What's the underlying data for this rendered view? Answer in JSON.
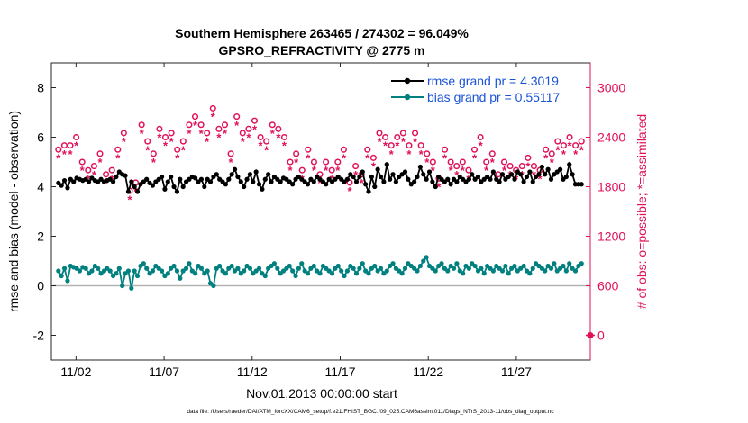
{
  "chart_data": {
    "type": "line",
    "title_line1": "Southern Hemisphere 263465 / 274302 = 96.049%",
    "title_line2": "GPSRO_REFRACTIVITY @ 2775 m",
    "xlabel": "Nov.01,2013 00:00:00 start",
    "ylabel_left": "rmse and bias (model - observation)",
    "ylabel_right": "# of obs: o=possible; *=assimilated",
    "footer": "data file: /Users/raeder/DAI/ATM_forcXX/CAM6_setup/f.e21.FHIST_BGC.f09_025.CAM6assim.011/Diags_NTrS_2013-11/obs_diag_output.nc",
    "xlim": [
      0.6,
      31.2
    ],
    "ylim_left": [
      -3,
      9
    ],
    "ylim_right": [
      -300,
      3300
    ],
    "x_ticks": [
      {
        "value": 2,
        "label": "11/02"
      },
      {
        "value": 7,
        "label": "11/07"
      },
      {
        "value": 12,
        "label": "11/12"
      },
      {
        "value": 17,
        "label": "11/17"
      },
      {
        "value": 22,
        "label": "11/22"
      },
      {
        "value": 27,
        "label": "11/27"
      }
    ],
    "y_ticks_left": [
      -2,
      0,
      2,
      4,
      6,
      8
    ],
    "y_ticks_right": [
      0,
      600,
      1200,
      1800,
      2400,
      3000
    ],
    "legend_position": "top-right",
    "series": [
      {
        "name": "rmse grand pr = 4.3019",
        "color": "#000000",
        "axis": "left",
        "marker": "circle",
        "values": [
          4.15,
          4.05,
          4.25,
          3.95,
          4.3,
          4.2,
          4.35,
          4.3,
          4.25,
          4.3,
          4.2,
          4.35,
          4.25,
          4.2,
          4.3,
          4.2,
          4.25,
          4.3,
          4.2,
          4.4,
          4.6,
          4.5,
          4.45,
          3.8,
          4.2,
          4.0,
          3.8,
          4.1,
          4.2,
          4.3,
          4.15,
          4.05,
          4.2,
          4.3,
          4.4,
          3.9,
          4.2,
          4.4,
          4.0,
          3.8,
          4.3,
          4.0,
          4.2,
          4.3,
          4.4,
          4.35,
          4.2,
          4.3,
          4.0,
          4.3,
          4.2,
          4.4,
          4.5,
          4.3,
          4.2,
          4.1,
          4.3,
          4.5,
          4.7,
          4.4,
          4.2,
          4.0,
          4.3,
          4.5,
          4.2,
          4.6,
          4.1,
          3.9,
          4.3,
          4.5,
          4.2,
          4.4,
          4.3,
          4.2,
          4.35,
          4.3,
          4.2,
          4.1,
          4.3,
          4.4,
          4.3,
          4.2,
          4.1,
          4.3,
          4.2,
          4.4,
          4.3,
          4.2,
          4.1,
          4.3,
          4.2,
          4.3,
          4.4,
          4.3,
          4.2,
          4.3,
          4.5,
          4.4,
          4.2,
          4.4,
          4.6,
          4.1,
          3.8,
          4.4,
          4.0,
          4.7,
          4.4,
          4.2,
          4.9,
          4.3,
          4.5,
          4.2,
          4.4,
          4.5,
          4.6,
          4.3,
          4.1,
          4.2,
          4.4,
          4.8,
          4.5,
          4.3,
          4.6,
          4.2,
          4.0,
          4.4,
          4.3,
          4.2,
          4.3,
          4.1,
          4.3,
          4.2,
          4.4,
          4.3,
          4.2,
          4.3,
          4.5,
          4.3,
          4.4,
          4.2,
          4.3,
          4.4,
          4.3,
          4.6,
          4.3,
          4.2,
          4.5,
          4.3,
          4.4,
          4.5,
          4.3,
          4.6,
          4.5,
          4.2,
          4.4,
          4.6,
          4.2,
          4.4,
          4.5,
          4.8,
          4.5,
          4.7,
          4.3,
          4.5,
          4.6,
          4.7,
          4.3,
          4.4,
          4.9,
          4.5,
          4.1,
          4.1,
          4.1
        ]
      },
      {
        "name": "bias grand pr = 0.55117",
        "color": "#00807f",
        "axis": "left",
        "marker": "circle",
        "values": [
          0.6,
          0.4,
          0.7,
          0.2,
          0.8,
          0.75,
          0.7,
          0.6,
          0.75,
          0.7,
          0.5,
          0.6,
          0.8,
          0.7,
          0.5,
          0.6,
          0.7,
          0.6,
          0.4,
          0.5,
          0.7,
          0.0,
          0.5,
          0.6,
          -0.1,
          0.6,
          0.4,
          0.8,
          0.9,
          0.7,
          0.5,
          0.6,
          0.8,
          0.7,
          0.6,
          0.4,
          0.5,
          0.7,
          0.8,
          0.6,
          0.3,
          0.6,
          0.7,
          0.9,
          0.6,
          0.5,
          0.8,
          0.7,
          0.5,
          0.6,
          0.1,
          0.0,
          0.7,
          0.8,
          0.6,
          0.5,
          0.7,
          0.8,
          0.6,
          0.7,
          0.5,
          0.6,
          0.8,
          0.7,
          0.5,
          0.6,
          0.7,
          0.5,
          0.4,
          0.7,
          0.8,
          0.9,
          0.7,
          0.5,
          0.6,
          0.7,
          0.8,
          0.6,
          0.4,
          0.7,
          0.9,
          0.6,
          0.5,
          0.7,
          0.8,
          0.6,
          0.5,
          0.8,
          0.7,
          0.6,
          0.5,
          0.7,
          0.8,
          0.6,
          0.4,
          0.6,
          0.8,
          0.7,
          0.5,
          0.7,
          0.9,
          0.6,
          0.5,
          0.7,
          0.8,
          0.6,
          0.7,
          0.5,
          0.6,
          0.8,
          0.9,
          0.7,
          0.6,
          0.5,
          0.7,
          0.9,
          0.8,
          0.7,
          0.6,
          0.8,
          1.0,
          1.15,
          0.8,
          0.7,
          0.6,
          0.8,
          0.9,
          0.7,
          0.6,
          0.8,
          0.7,
          0.9,
          0.6,
          0.5,
          0.8,
          0.7,
          0.9,
          0.8,
          0.6,
          0.7,
          0.5,
          0.8,
          0.7,
          0.6,
          0.8,
          0.7,
          0.6,
          0.8,
          0.5,
          0.7,
          0.8,
          0.6,
          0.7,
          0.8,
          0.6,
          0.5,
          0.7,
          0.9,
          0.8,
          0.7,
          0.6,
          0.8,
          0.7,
          0.9,
          0.6,
          0.7,
          0.8,
          0.6,
          0.9,
          0.7,
          0.6,
          0.8,
          0.9
        ]
      },
      {
        "name": "obs possible",
        "color": "#e0105a",
        "axis": "right",
        "marker": "open-circle",
        "values": [
          2250,
          2200,
          2300,
          2150,
          2300,
          2600,
          2400,
          2250,
          2100,
          1950,
          2000,
          2150,
          2050,
          2500,
          2200,
          2000,
          1950,
          1900,
          2000,
          2100,
          2250,
          2600,
          2450,
          2100,
          1750,
          1900,
          1850,
          2400,
          2550,
          2450,
          2350,
          2400,
          2200,
          2300,
          2500,
          2550,
          2400,
          2100,
          2450,
          2300,
          2250,
          2300,
          2350,
          2200,
          2550,
          2750,
          2650,
          2700,
          2550,
          2400,
          2450,
          2600,
          2750,
          2700,
          2500,
          2650,
          2550,
          2350,
          2200,
          2600,
          2650,
          2500,
          2450,
          2300,
          2500,
          2450,
          2600,
          2650,
          2400,
          2450,
          2350,
          2500,
          2550,
          2450,
          2500,
          2300,
          2400,
          2250,
          2100,
          2050,
          2200,
          2150,
          2000,
          2150,
          2250,
          2300,
          2100,
          1850,
          1950,
          2050,
          2100,
          1950,
          2000,
          2050,
          2100,
          2200,
          2250,
          2100,
          1850,
          1950,
          2050,
          2000,
          1950,
          2100,
          2250,
          2300,
          2150,
          2350,
          2450,
          2550,
          2400,
          2350,
          2300,
          2250,
          2400,
          2550,
          2450,
          2400,
          2300,
          2500,
          2450,
          2350,
          2300,
          2150,
          2200,
          2050,
          2100,
          2000,
          1900,
          2100,
          2250,
          2150,
          2100,
          1950,
          2050,
          2000,
          2100,
          1850,
          2000,
          2150,
          2250,
          2300,
          2400,
          2250,
          2100,
          2150,
          2200,
          2050,
          1950,
          2000,
          2100,
          1950,
          2050,
          2100,
          2000,
          1950,
          2050,
          2100,
          2150,
          2200,
          2050,
          1950,
          2000,
          2100,
          2250,
          2300,
          2200,
          2150,
          2350,
          2400,
          2300,
          2250,
          2400,
          2350,
          2300,
          2450,
          2350
        ]
      },
      {
        "name": "obs assimilated",
        "color": "#e0105a",
        "axis": "right",
        "marker": "star",
        "values": [
          2150,
          2100,
          2200,
          2050,
          2200,
          2450,
          2300,
          2150,
          2000,
          1850,
          1900,
          2050,
          1950,
          2400,
          2100,
          1900,
          1850,
          1800,
          1900,
          2000,
          2150,
          2500,
          2350,
          2000,
          1650,
          1800,
          1750,
          2300,
          2450,
          2350,
          2250,
          2300,
          2100,
          2200,
          2400,
          2450,
          2300,
          2000,
          2350,
          2200,
          2150,
          2200,
          2250,
          2100,
          2450,
          2650,
          2550,
          2600,
          2450,
          2300,
          2350,
          2500,
          2650,
          2600,
          2400,
          2550,
          2450,
          2250,
          2100,
          2500,
          2550,
          2400,
          2350,
          2200,
          2400,
          2350,
          2500,
          2550,
          2300,
          2350,
          2250,
          2400,
          2450,
          2350,
          2400,
          2200,
          2300,
          2150,
          2000,
          1950,
          2100,
          2050,
          1900,
          2050,
          2150,
          2200,
          2000,
          1750,
          1850,
          1950,
          2000,
          1850,
          1900,
          1950,
          2000,
          2100,
          2150,
          2000,
          1750,
          1850,
          1950,
          1900,
          1850,
          2000,
          2150,
          2200,
          2050,
          2250,
          2350,
          2450,
          2300,
          2250,
          2200,
          2150,
          2300,
          2450,
          2350,
          2300,
          2200,
          2400,
          2350,
          2250,
          2200,
          2050,
          2100,
          1950,
          2000,
          1900,
          1800,
          2000,
          2150,
          2050,
          2000,
          1850,
          1950,
          1900,
          2000,
          1750,
          1900,
          2050,
          2150,
          2200,
          2300,
          2150,
          2000,
          2050,
          2100,
          1950,
          1850,
          1900,
          2000,
          1850,
          1950,
          2000,
          1900,
          1850,
          1950,
          2000,
          2050,
          2100,
          1950,
          1850,
          1900,
          2000,
          2150,
          2200,
          2100,
          2050,
          2250,
          2300,
          2200,
          2150,
          2300,
          2250,
          2200,
          2350,
          2250
        ]
      }
    ],
    "extra_marker": {
      "x": 31.2,
      "y_right": 0,
      "color": "#e0105a"
    }
  }
}
